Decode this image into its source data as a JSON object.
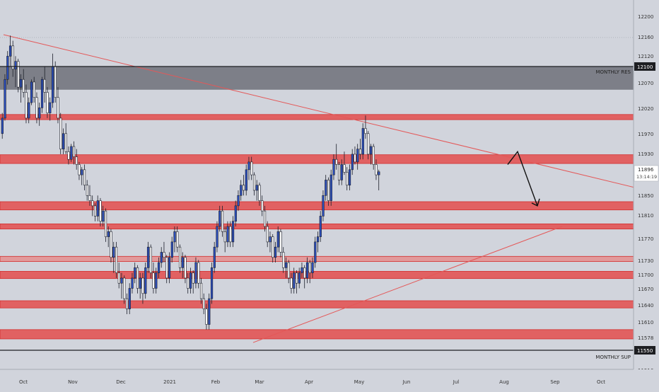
{
  "chart_data": {
    "type": "candlestick",
    "y_axis_ticks": [
      12200,
      12160,
      12120,
      12070,
      12020,
      11970,
      11930,
      11850,
      11810,
      11770,
      11730,
      11700,
      11670,
      11640,
      11610,
      11578,
      11516
    ],
    "x_axis_ticks": [
      "Oct",
      "Nov",
      "Dec",
      "2021",
      "Feb",
      "Mar",
      "Apr",
      "May",
      "Jun",
      "Jul",
      "Aug",
      "Sep",
      "Oct"
    ],
    "current_price": {
      "value": "11896",
      "countdown": "13:14:19"
    },
    "level_labels": [
      {
        "price": "12100",
        "name": "MONTHLY RES"
      },
      {
        "price": "11550",
        "name": "MONTHLY SUP"
      }
    ],
    "resistance_zone": {
      "low": 12055,
      "high": 12100
    },
    "red_zones": [
      [
        11997,
        12007
      ],
      [
        11912,
        11929
      ],
      [
        11822,
        11838
      ],
      [
        11785,
        11795
      ],
      [
        11722,
        11732
      ],
      [
        11689,
        11703
      ],
      [
        11632,
        11646
      ],
      [
        11572,
        11590
      ]
    ],
    "trendlines": [
      {
        "from": [
          "Sep-15",
          12165
        ],
        "to": [
          "Aug-31",
          11866
        ]
      },
      {
        "from": [
          "Feb-24",
          11565
        ],
        "to": [
          "Aug-25",
          11790
        ]
      }
    ],
    "projection_arrow": [
      "11910",
      "11935",
      "11830"
    ],
    "series": [
      {
        "name": "Sep",
        "values": [
          [
            11970,
            12010,
            11960,
            12000
          ],
          [
            12000,
            12085,
            11995,
            12075
          ],
          [
            12075,
            12130,
            12065,
            12120
          ],
          [
            12120,
            12160,
            12100,
            12140
          ]
        ]
      },
      {
        "name": "Oct",
        "values": [
          [
            12140,
            12150,
            12080,
            12095
          ],
          [
            12095,
            12120,
            12060,
            12110
          ],
          [
            12110,
            12115,
            12050,
            12060
          ],
          [
            12060,
            12085,
            12030,
            12075
          ],
          [
            12075,
            12095,
            12040,
            12050
          ],
          [
            12050,
            12065,
            11990,
            12000
          ],
          [
            12000,
            12040,
            11990,
            12030
          ],
          [
            12030,
            12075,
            12025,
            12070
          ],
          [
            12070,
            12080,
            12030,
            12040
          ],
          [
            12040,
            12050,
            11990,
            12000
          ],
          [
            12000,
            12030,
            11985,
            12020
          ],
          [
            12020,
            12080,
            12010,
            12075
          ],
          [
            12075,
            12100,
            12030,
            12050
          ],
          [
            12050,
            12060,
            12000,
            12010
          ],
          [
            12010,
            12040,
            11995,
            12030
          ],
          [
            12030,
            12125,
            12020,
            12100
          ]
        ]
      },
      {
        "name": "Nov",
        "values": [
          [
            12100,
            12110,
            12030,
            12040
          ],
          [
            12040,
            12060,
            11990,
            12000
          ],
          [
            12000,
            12010,
            11930,
            11940
          ],
          [
            11940,
            11980,
            11930,
            11970
          ],
          [
            11970,
            11990,
            11930,
            11935
          ],
          [
            11935,
            11945,
            11910,
            11920
          ],
          [
            11920,
            11950,
            11915,
            11945
          ],
          [
            11945,
            11955,
            11910,
            11925
          ],
          [
            11925,
            11940,
            11900,
            11910
          ],
          [
            11910,
            11915,
            11880,
            11890
          ],
          [
            11890,
            11905,
            11870,
            11900
          ],
          [
            11900,
            11910,
            11860,
            11870
          ],
          [
            11870,
            11880,
            11840,
            11850
          ],
          [
            11850,
            11870,
            11830,
            11840
          ],
          [
            11840,
            11850,
            11810,
            11830
          ],
          [
            11830,
            11835,
            11800,
            11810
          ],
          [
            11810,
            11850,
            11800,
            11840
          ],
          [
            11840,
            11845,
            11790,
            11800
          ]
        ]
      },
      {
        "name": "Dec",
        "values": [
          [
            11800,
            11830,
            11790,
            11820
          ],
          [
            11820,
            11825,
            11760,
            11770
          ],
          [
            11770,
            11790,
            11750,
            11780
          ],
          [
            11780,
            11785,
            11720,
            11730
          ],
          [
            11730,
            11760,
            11700,
            11750
          ],
          [
            11750,
            11760,
            11690,
            11700
          ],
          [
            11700,
            11720,
            11670,
            11680
          ],
          [
            11680,
            11700,
            11650,
            11690
          ],
          [
            11690,
            11695,
            11640,
            11650
          ],
          [
            11650,
            11660,
            11620,
            11630
          ],
          [
            11630,
            11680,
            11620,
            11670
          ],
          [
            11670,
            11700,
            11660,
            11690
          ],
          [
            11690,
            11720,
            11680,
            11710
          ],
          [
            11710,
            11715,
            11660,
            11670
          ],
          [
            11670,
            11700,
            11650,
            11690
          ],
          [
            11690,
            11700,
            11640,
            11660
          ],
          [
            11660,
            11720,
            11650,
            11710
          ]
        ]
      },
      {
        "name": "Jan",
        "values": [
          [
            11710,
            11760,
            11700,
            11750
          ],
          [
            11750,
            11755,
            11690,
            11700
          ],
          [
            11700,
            11720,
            11660,
            11670
          ],
          [
            11670,
            11710,
            11660,
            11700
          ],
          [
            11700,
            11730,
            11690,
            11720
          ],
          [
            11720,
            11750,
            11710,
            11740
          ],
          [
            11740,
            11760,
            11720,
            11730
          ],
          [
            11730,
            11735,
            11680,
            11690
          ],
          [
            11690,
            11740,
            11680,
            11730
          ],
          [
            11730,
            11770,
            11720,
            11760
          ],
          [
            11760,
            11790,
            11740,
            11780
          ],
          [
            11780,
            11790,
            11740,
            11750
          ],
          [
            11750,
            11755,
            11700,
            11710
          ],
          [
            11710,
            11740,
            11690,
            11730
          ],
          [
            11730,
            11735,
            11680,
            11690
          ],
          [
            11690,
            11700,
            11660,
            11670
          ]
        ]
      },
      {
        "name": "Feb",
        "values": [
          [
            11670,
            11710,
            11660,
            11700
          ],
          [
            11700,
            11705,
            11660,
            11680
          ],
          [
            11680,
            11730,
            11670,
            11720
          ],
          [
            11720,
            11725,
            11670,
            11680
          ],
          [
            11680,
            11690,
            11640,
            11650
          ],
          [
            11650,
            11660,
            11620,
            11630
          ],
          [
            11630,
            11640,
            11590,
            11600
          ],
          [
            11600,
            11660,
            11590,
            11650
          ],
          [
            11650,
            11720,
            11640,
            11710
          ],
          [
            11710,
            11760,
            11700,
            11750
          ],
          [
            11750,
            11800,
            11740,
            11790
          ],
          [
            11790,
            11830,
            11780,
            11820
          ],
          [
            11820,
            11830,
            11770,
            11780
          ],
          [
            11780,
            11790,
            11740,
            11760
          ],
          [
            11760,
            11800,
            11750,
            11790
          ],
          [
            11790,
            11800,
            11750,
            11760
          ],
          [
            11760,
            11810,
            11750,
            11800
          ]
        ]
      },
      {
        "name": "Mar",
        "values": [
          [
            11800,
            11840,
            11790,
            11830
          ],
          [
            11830,
            11860,
            11820,
            11850
          ],
          [
            11850,
            11880,
            11840,
            11870
          ],
          [
            11870,
            11890,
            11850,
            11860
          ],
          [
            11860,
            11910,
            11850,
            11900
          ],
          [
            11900,
            11925,
            11880,
            11915
          ],
          [
            11915,
            11925,
            11880,
            11890
          ],
          [
            11890,
            11895,
            11850,
            11860
          ],
          [
            11860,
            11880,
            11840,
            11870
          ],
          [
            11870,
            11875,
            11830,
            11840
          ],
          [
            11840,
            11850,
            11810,
            11820
          ],
          [
            11820,
            11830,
            11780,
            11790
          ],
          [
            11790,
            11800,
            11750,
            11760
          ],
          [
            11760,
            11780,
            11740,
            11770
          ],
          [
            11770,
            11775,
            11720,
            11730
          ],
          [
            11730,
            11760,
            11720,
            11750
          ]
        ]
      },
      {
        "name": "Apr",
        "values": [
          [
            11750,
            11790,
            11740,
            11780
          ],
          [
            11780,
            11785,
            11730,
            11740
          ],
          [
            11740,
            11750,
            11700,
            11710
          ],
          [
            11710,
            11730,
            11690,
            11720
          ],
          [
            11720,
            11725,
            11680,
            11690
          ],
          [
            11690,
            11700,
            11660,
            11670
          ],
          [
            11670,
            11710,
            11660,
            11700
          ],
          [
            11700,
            11705,
            11660,
            11680
          ],
          [
            11680,
            11710,
            11670,
            11700
          ],
          [
            11700,
            11720,
            11690,
            11710
          ],
          [
            11710,
            11715,
            11670,
            11690
          ],
          [
            11690,
            11730,
            11680,
            11720
          ],
          [
            11720,
            11725,
            11680,
            11700
          ],
          [
            11700,
            11730,
            11690,
            11720
          ]
        ]
      },
      {
        "name": "May",
        "values": [
          [
            11720,
            11770,
            11710,
            11760
          ],
          [
            11760,
            11780,
            11740,
            11770
          ],
          [
            11770,
            11820,
            11760,
            11810
          ],
          [
            11810,
            11860,
            11800,
            11850
          ],
          [
            11850,
            11890,
            11840,
            11880
          ],
          [
            11880,
            11885,
            11830,
            11840
          ],
          [
            11840,
            11900,
            11830,
            11890
          ],
          [
            11890,
            11930,
            11880,
            11920
          ],
          [
            11920,
            11950,
            11900,
            11910
          ],
          [
            11910,
            11915,
            11870,
            11880
          ],
          [
            11880,
            11920,
            11870,
            11910
          ],
          [
            11910,
            11935,
            11890,
            11895
          ],
          [
            11895,
            11905,
            11860,
            11870
          ],
          [
            11870,
            11910,
            11860,
            11900
          ],
          [
            11900,
            11940,
            11890,
            11930
          ],
          [
            11930,
            11945,
            11910,
            11915
          ]
        ]
      },
      {
        "name": "Jun",
        "values": [
          [
            11915,
            11950,
            11900,
            11940
          ],
          [
            11940,
            11960,
            11920,
            11930
          ],
          [
            11930,
            11990,
            11920,
            11980
          ],
          [
            11980,
            12005,
            11960,
            11970
          ],
          [
            11970,
            11975,
            11920,
            11930
          ],
          [
            11930,
            11950,
            11910,
            11945
          ],
          [
            11945,
            11950,
            11900,
            11910
          ],
          [
            11910,
            11920,
            11880,
            11890
          ],
          [
            11890,
            11900,
            11860,
            11896
          ]
        ]
      }
    ]
  }
}
